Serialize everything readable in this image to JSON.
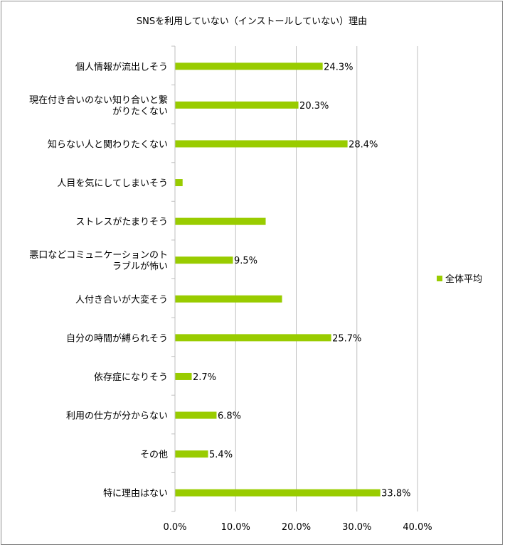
{
  "chart_data": {
    "type": "bar",
    "orientation": "horizontal",
    "title": "SNSを利用していない（インストールしていない）理由",
    "categories": [
      [
        "個人情報が流出しそう"
      ],
      [
        "現在付き合いのない知り合いと繋",
        "がりたくない"
      ],
      [
        "知らない人と関わりたくない"
      ],
      [
        "人目を気にしてしまいそう"
      ],
      [
        "ストレスがたまりそう"
      ],
      [
        "悪口などコミュニケーションのト",
        "ラブルが怖い"
      ],
      [
        "人付き合いが大変そう"
      ],
      [
        "自分の時間が縛られそう"
      ],
      [
        "依存症になりそう"
      ],
      [
        "利用の仕方が分からない"
      ],
      [
        "その他"
      ],
      [
        "特に理由はない"
      ]
    ],
    "series": [
      {
        "name": "全体平均",
        "color": "#99cc00",
        "values": [
          24.3,
          20.3,
          28.4,
          1.2,
          14.9,
          9.5,
          17.6,
          25.7,
          2.7,
          6.8,
          5.4,
          33.8
        ],
        "labels": [
          "24.3%",
          "20.3%",
          "28.4%",
          "",
          "",
          "9.5%",
          "",
          "25.7%",
          "2.7%",
          "6.8%",
          "5.4%",
          "33.8%"
        ]
      }
    ],
    "xlim": [
      0,
      40
    ],
    "xticks": [
      0,
      10,
      20,
      30,
      40
    ],
    "xtick_labels": [
      "0.0%",
      "10.0%",
      "20.0%",
      "30.0%",
      "40.0%"
    ],
    "grid": true,
    "legend": "right"
  }
}
